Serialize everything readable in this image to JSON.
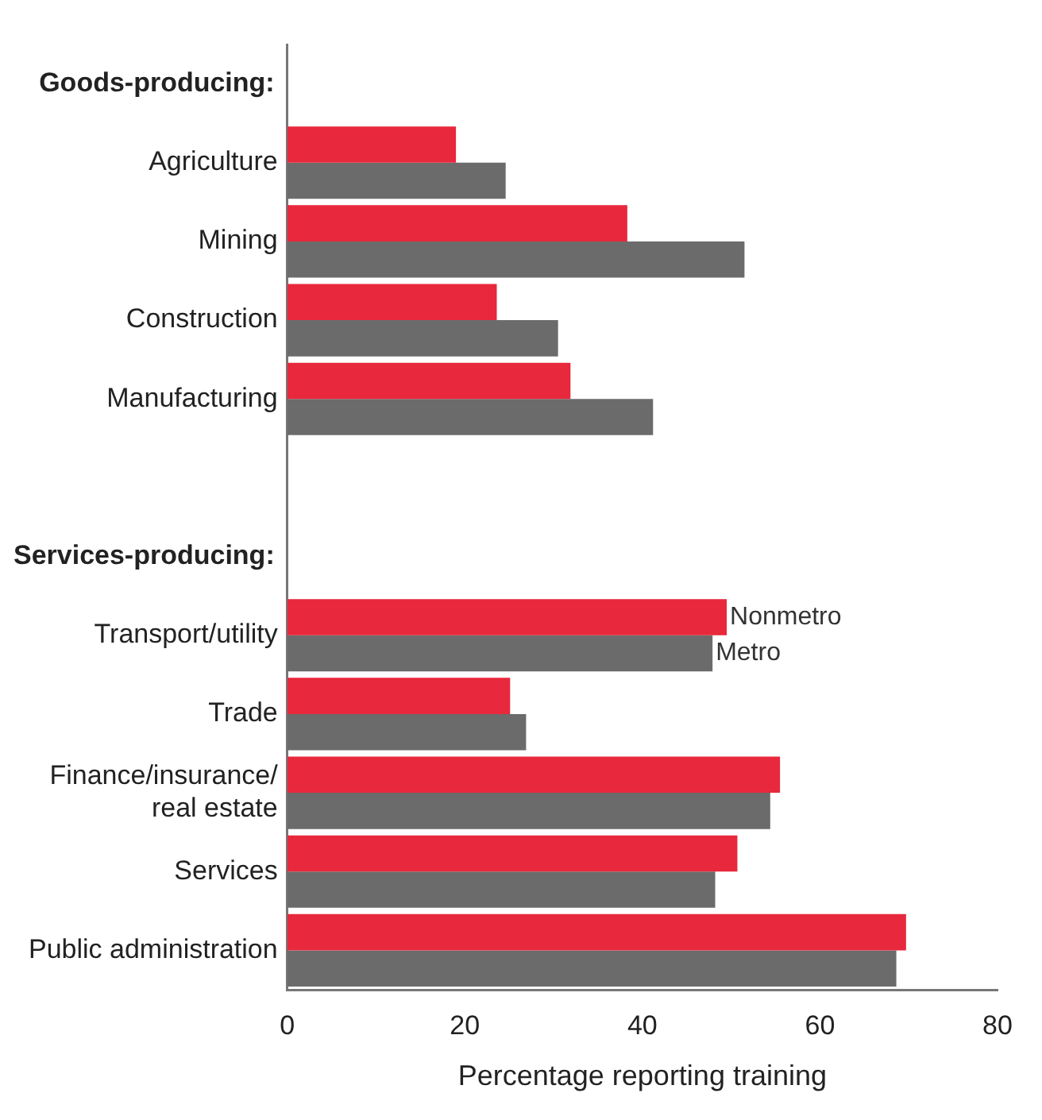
{
  "chart_data": {
    "type": "bar",
    "orientation": "horizontal",
    "xlabel": "Percentage reporting training",
    "annotations": [
      "Goods-producing:",
      "Services-producing:"
    ],
    "categories": [
      null,
      "Agriculture",
      "Mining",
      "Construction",
      "Manufacturing",
      null,
      null,
      "Transport/utility",
      "Trade",
      "Finance/insurance/\nreal estate",
      "Services",
      "Public administration"
    ],
    "series": [
      {
        "name": "Nonmetro",
        "color": "#e8283c",
        "values": [
          null,
          19,
          38.3,
          23.6,
          31.9,
          null,
          null,
          49.5,
          25.1,
          55.5,
          50.7,
          69.7
        ]
      },
      {
        "name": "Metro",
        "color": "#6b6b6b",
        "values": [
          null,
          24.6,
          51.5,
          30.5,
          41.2,
          null,
          null,
          47.9,
          26.9,
          54.4,
          48.2,
          68.6
        ]
      }
    ],
    "xlim": [
      0,
      80
    ],
    "xticks": [
      0,
      20,
      40,
      60,
      80
    ],
    "grid": false,
    "legend": false
  }
}
